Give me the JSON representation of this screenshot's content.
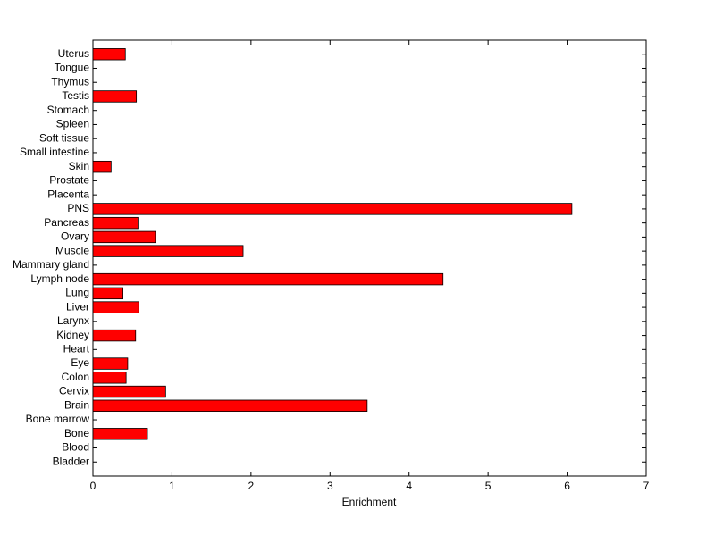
{
  "chart_data": {
    "type": "barh",
    "xlabel": "Enrichment",
    "categories": [
      "Bladder",
      "Blood",
      "Bone",
      "Bone marrow",
      "Brain",
      "Cervix",
      "Colon",
      "Eye",
      "Heart",
      "Kidney",
      "Larynx",
      "Liver",
      "Lung",
      "Lymph node",
      "Mammary gland",
      "Muscle",
      "Ovary",
      "Pancreas",
      "PNS",
      "Placenta",
      "Prostate",
      "Skin",
      "Small intestine",
      "Soft tissue",
      "Spleen",
      "Stomach",
      "Testis",
      "Thymus",
      "Tongue",
      "Uterus"
    ],
    "values": [
      0,
      0,
      0.69,
      0,
      3.47,
      0.92,
      0.42,
      0.44,
      0,
      0.54,
      0,
      0.58,
      0.38,
      4.43,
      0,
      1.9,
      0.79,
      0.57,
      6.06,
      0,
      0,
      0.23,
      0,
      0,
      0,
      0,
      0.55,
      0,
      0,
      0.41
    ],
    "color": "#ff0000",
    "xlim": [
      0,
      7
    ],
    "xticks": [
      0,
      1,
      2,
      3,
      4,
      5,
      6,
      7
    ]
  }
}
